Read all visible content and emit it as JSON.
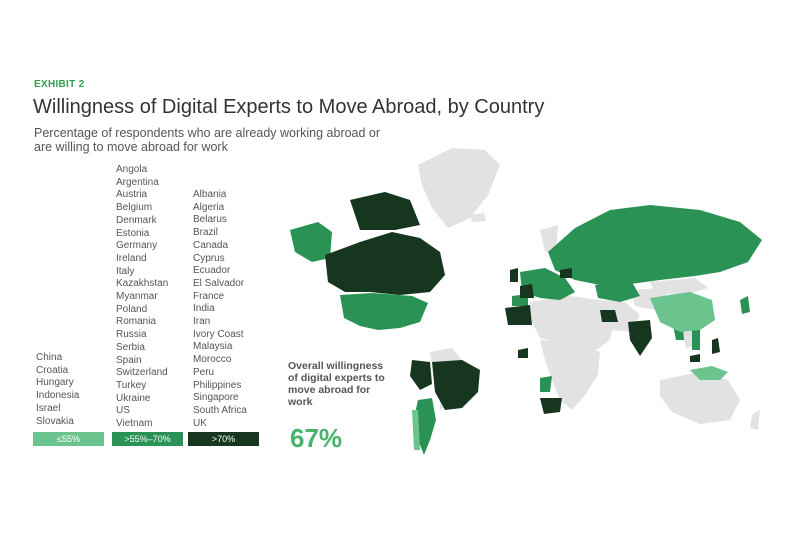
{
  "header": {
    "exhibit": "EXHIBIT 2",
    "title": "Willingness of Digital Experts to Move Abroad, by Country",
    "subtitle": "Percentage of respondents who are already working abroad or are willing to move abroad for work"
  },
  "groups": [
    {
      "label": "≤55%",
      "color": "#6bc48d",
      "countries": [
        "China",
        "Croatia",
        "Hungary",
        "Indonesia",
        "Israel",
        "Slovakia"
      ]
    },
    {
      "label": ">55%–70%",
      "color": "#2a9254",
      "countries": [
        "Angola",
        "Argentina",
        "Austria",
        "Belgium",
        "Denmark",
        "Estonia",
        "Germany",
        "Ireland",
        "Italy",
        "Kazakhstan",
        "Myanmar",
        "Poland",
        "Romania",
        "Russia",
        "Serbia",
        "Spain",
        "Switzerland",
        "Turkey",
        "Ukraine",
        "US",
        "Vietnam"
      ]
    },
    {
      "label": ">70%",
      "color": "#17361f",
      "countries": [
        "Albania",
        "Algeria",
        "Belarus",
        "Brazil",
        "Canada",
        "Cyprus",
        "Ecuador",
        "El Salvador",
        "France",
        "India",
        "Iran",
        "Ivory Coast",
        "Malaysia",
        "Morocco",
        "Peru",
        "Philippines",
        "Singapore",
        "South Africa",
        "UK"
      ]
    }
  ],
  "overall": {
    "label": "Overall willingness of digital experts to move abroad for work",
    "value": "67%"
  },
  "map_colors": {
    "no_data": "#e2e2e2",
    "low": "#6bc48d",
    "mid": "#2a9254",
    "high": "#17361f"
  }
}
